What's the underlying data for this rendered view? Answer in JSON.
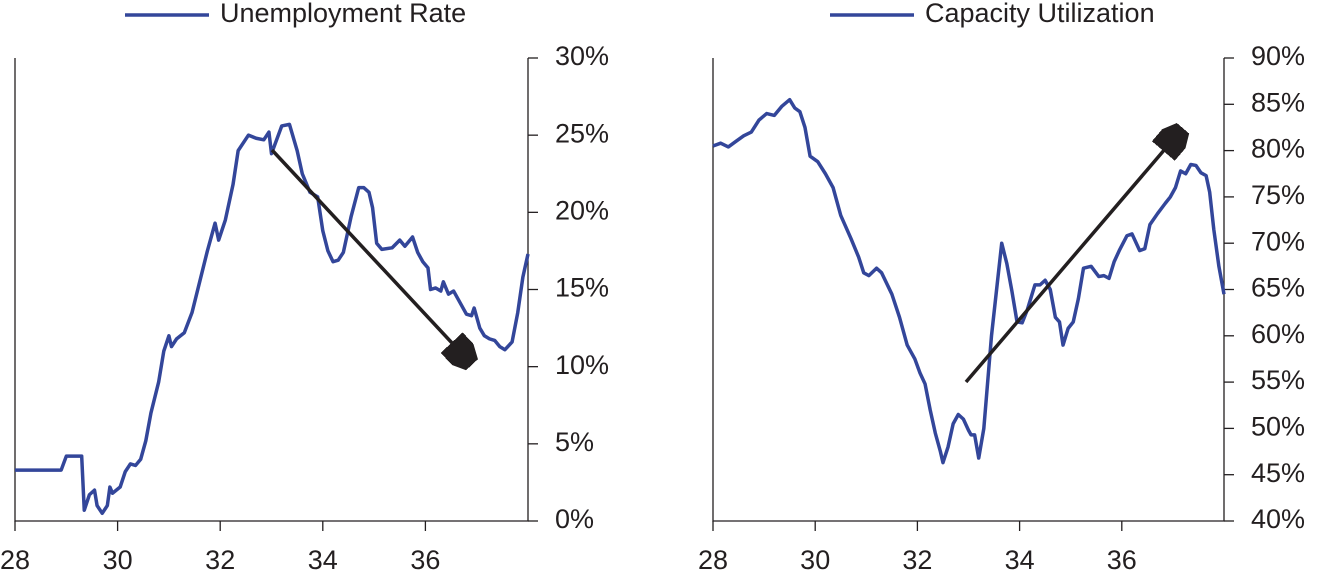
{
  "chart_data": [
    {
      "type": "line",
      "series": [
        {
          "name": "Unemployment Rate",
          "color": "#33469a",
          "x": [
            28.0,
            28.5,
            28.9,
            29.0,
            29.3,
            29.35,
            29.45,
            29.55,
            29.6,
            29.7,
            29.8,
            29.85,
            29.9,
            30.05,
            30.15,
            30.25,
            30.35,
            30.45,
            30.55,
            30.65,
            30.8,
            30.9,
            31.0,
            31.05,
            31.15,
            31.3,
            31.45,
            31.6,
            31.75,
            31.9,
            31.97,
            32.1,
            32.25,
            32.35,
            32.55,
            32.7,
            32.85,
            32.95,
            33.0,
            33.2,
            33.35,
            33.5,
            33.6,
            33.75,
            33.9,
            34.0,
            34.1,
            34.2,
            34.3,
            34.4,
            34.55,
            34.7,
            34.8,
            34.9,
            34.97,
            35.05,
            35.15,
            35.35,
            35.5,
            35.6,
            35.75,
            35.85,
            35.95,
            36.05,
            36.1,
            36.2,
            36.3,
            36.35,
            36.45,
            36.55,
            36.7,
            36.8,
            36.9,
            36.95,
            37.06,
            37.15,
            37.25,
            37.35,
            37.45,
            37.55,
            37.69,
            37.8,
            37.9,
            38.0
          ],
          "values": [
            3.3,
            3.3,
            3.3,
            4.2,
            4.2,
            0.7,
            1.7,
            2.0,
            1.0,
            0.5,
            1.0,
            2.2,
            1.8,
            2.2,
            3.2,
            3.7,
            3.6,
            4.0,
            5.2,
            7.0,
            9.0,
            11.0,
            12.0,
            11.3,
            11.8,
            12.2,
            13.5,
            15.5,
            17.5,
            19.3,
            18.2,
            19.5,
            21.8,
            24.0,
            25.0,
            24.8,
            24.7,
            25.2,
            23.8,
            25.6,
            25.7,
            24.0,
            22.5,
            21.3,
            21.0,
            18.8,
            17.5,
            16.8,
            16.9,
            17.4,
            19.7,
            21.6,
            21.6,
            21.3,
            20.3,
            18.0,
            17.6,
            17.7,
            18.2,
            17.8,
            18.4,
            17.4,
            16.8,
            16.4,
            15.0,
            15.1,
            14.9,
            15.5,
            14.7,
            14.9,
            14.0,
            13.4,
            13.3,
            13.8,
            12.5,
            12.0,
            11.8,
            11.7,
            11.3,
            11.1,
            11.6,
            13.5,
            15.8,
            17.3
          ]
        }
      ],
      "xlim": [
        28,
        38
      ],
      "xticks": [
        28,
        30,
        32,
        34,
        36
      ],
      "ylim": [
        0,
        30
      ],
      "yticks": [
        {
          "value": 0,
          "label": "0%"
        },
        {
          "value": 5,
          "label": "5%"
        },
        {
          "value": 10,
          "label": "10%"
        },
        {
          "value": 15,
          "label": "15%"
        },
        {
          "value": 20,
          "label": "20%"
        },
        {
          "value": 25,
          "label": "25%"
        },
        {
          "value": 30,
          "label": "30%"
        }
      ]
    },
    {
      "type": "line",
      "series": [
        {
          "name": "Capacity Utilization",
          "color": "#33469a",
          "x": [
            28.0,
            28.15,
            28.3,
            28.45,
            28.6,
            28.75,
            28.9,
            29.05,
            29.2,
            29.35,
            29.5,
            29.6,
            29.7,
            29.8,
            29.9,
            30.05,
            30.2,
            30.35,
            30.5,
            30.7,
            30.85,
            30.95,
            31.05,
            31.2,
            31.3,
            31.5,
            31.65,
            31.8,
            31.95,
            32.05,
            32.15,
            32.25,
            32.35,
            32.45,
            32.5,
            32.6,
            32.7,
            32.8,
            32.9,
            33.0,
            33.05,
            33.12,
            33.2,
            33.3,
            33.45,
            33.55,
            33.65,
            33.75,
            33.85,
            33.95,
            34.05,
            34.15,
            34.3,
            34.4,
            34.5,
            34.6,
            34.7,
            34.78,
            34.85,
            34.95,
            35.05,
            35.15,
            35.25,
            35.4,
            35.55,
            35.65,
            35.75,
            35.85,
            35.95,
            36.1,
            36.2,
            36.35,
            36.45,
            36.55,
            36.7,
            36.85,
            36.95,
            37.05,
            37.15,
            37.25,
            37.35,
            37.45,
            37.55,
            37.65,
            37.72,
            37.8,
            37.9,
            38.0
          ],
          "values": [
            80.5,
            80.8,
            80.4,
            81.0,
            81.6,
            82.0,
            83.3,
            84.0,
            83.8,
            84.8,
            85.5,
            84.6,
            84.2,
            82.5,
            79.4,
            78.8,
            77.5,
            76.0,
            73.0,
            70.5,
            68.5,
            66.8,
            66.5,
            67.3,
            66.8,
            64.5,
            62.0,
            59.0,
            57.5,
            56.0,
            54.8,
            52.0,
            49.5,
            47.5,
            46.3,
            48.0,
            50.5,
            51.5,
            51.0,
            49.8,
            49.3,
            49.3,
            46.8,
            50.0,
            60.0,
            65.0,
            70.0,
            67.8,
            64.8,
            61.5,
            61.4,
            62.8,
            65.5,
            65.5,
            66.0,
            65.0,
            62.0,
            61.5,
            59.0,
            60.8,
            61.5,
            64.0,
            67.3,
            67.5,
            66.4,
            66.5,
            66.2,
            68.0,
            69.2,
            70.8,
            71.0,
            69.2,
            69.4,
            72.0,
            73.2,
            74.3,
            75.0,
            76.0,
            77.8,
            77.5,
            78.5,
            78.4,
            77.6,
            77.3,
            75.5,
            71.5,
            67.5,
            64.5
          ]
        }
      ],
      "xlim": [
        28,
        38
      ],
      "xticks": [
        28,
        30,
        32,
        34,
        36
      ],
      "ylim": [
        40,
        90
      ],
      "yticks": [
        {
          "value": 40,
          "label": "40%"
        },
        {
          "value": 45,
          "label": "45%"
        },
        {
          "value": 50,
          "label": "50%"
        },
        {
          "value": 55,
          "label": "55%"
        },
        {
          "value": 60,
          "label": "60%"
        },
        {
          "value": 65,
          "label": "65%"
        },
        {
          "value": 70,
          "label": "70%"
        },
        {
          "value": 75,
          "label": "75%"
        },
        {
          "value": 80,
          "label": "80%"
        },
        {
          "value": 85,
          "label": "85%"
        },
        {
          "value": 90,
          "label": "90%"
        }
      ]
    }
  ]
}
